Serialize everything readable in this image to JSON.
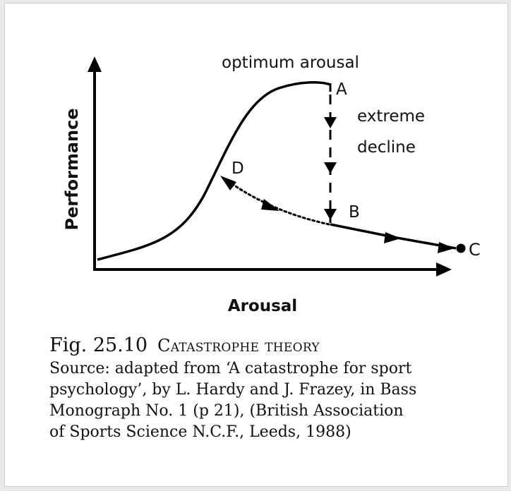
{
  "diagram": {
    "y_axis_label": "Performance",
    "x_axis_label": "Arousal",
    "annotation_peak": "optimum arousal",
    "annotation_drop_line1": "extreme",
    "annotation_drop_line2": "decline",
    "point_a": "A",
    "point_b": "B",
    "point_c": "C",
    "point_d": "D"
  },
  "caption": {
    "fig_number": "Fig. 25.10",
    "fig_title": "Catastrophe theory",
    "source_lines": [
      "Source: adapted from ‘A catastrophe for sport",
      "psychology’, by L. Hardy and J. Frazey, in Bass",
      "Monograph No. 1 (p 21), (British Association",
      "of Sports Science N.C.F., Leeds, 1988)"
    ]
  }
}
